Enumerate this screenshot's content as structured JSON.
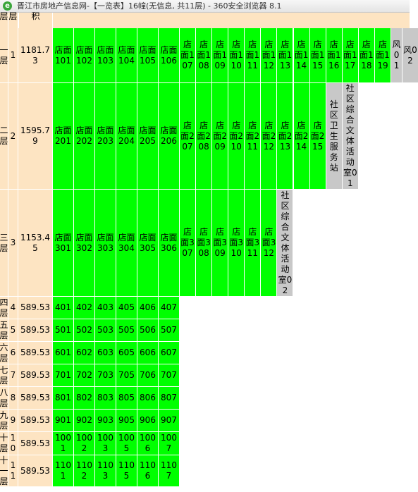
{
  "window_title": "晋江市房地产信息网-【一览表】16幢(无信息, 共11层) - 360安全浏览器 8.1",
  "header": [
    "层",
    "层",
    "积"
  ],
  "rows": [
    {
      "floor": "一层",
      "num": 1,
      "area": 1181.73,
      "units": [
        {
          "label": "店面101",
          "color": "#00ff00"
        },
        {
          "label": "店面102",
          "color": "#00ff00"
        },
        {
          "label": "店面103",
          "color": "#00ff00"
        },
        {
          "label": "店面104",
          "color": "#00ff00"
        },
        {
          "label": "店面105",
          "color": "#00ff00"
        },
        {
          "label": "店面106",
          "color": "#00ff00"
        },
        {
          "label": "店面107",
          "color": "#00ff00"
        },
        {
          "label": "店面108",
          "color": "#00ff00"
        },
        {
          "label": "店面109",
          "color": "#00ff00"
        },
        {
          "label": "店面110",
          "color": "#00ff00"
        },
        {
          "label": "店面111",
          "color": "#00ff00"
        },
        {
          "label": "店面112",
          "color": "#00ff00"
        },
        {
          "label": "店面113",
          "color": "#00ff00"
        },
        {
          "label": "店面114",
          "color": "#00ff00"
        },
        {
          "label": "店面115",
          "color": "#00ff00"
        },
        {
          "label": "店面116",
          "color": "#00ff00"
        },
        {
          "label": "店面117",
          "color": "#00ff00"
        },
        {
          "label": "店面118",
          "color": "#00ff00"
        },
        {
          "label": "店面119",
          "color": "#00ff00"
        },
        {
          "label": "风01",
          "color": "#c8c8c8"
        },
        {
          "label": "风02",
          "color": "#c8c8c8"
        }
      ]
    },
    {
      "floor": "二层",
      "num": 2,
      "area": 1595.79,
      "units": [
        {
          "label": "店面201",
          "color": "#00ff00"
        },
        {
          "label": "店面202",
          "color": "#00ff00"
        },
        {
          "label": "店面203",
          "color": "#00ff00"
        },
        {
          "label": "店面204",
          "color": "#00ff00"
        },
        {
          "label": "店面205",
          "color": "#00ff00"
        },
        {
          "label": "店面206",
          "color": "#00ff00"
        },
        {
          "label": "店面207",
          "color": "#00ff00"
        },
        {
          "label": "店面208",
          "color": "#00ff00"
        },
        {
          "label": "店面209",
          "color": "#00ff00"
        },
        {
          "label": "店面210",
          "color": "#00ff00"
        },
        {
          "label": "店面211",
          "color": "#00ff00"
        },
        {
          "label": "店面212",
          "color": "#00ff00"
        },
        {
          "label": "店面213",
          "color": "#00ff00"
        },
        {
          "label": "店面214",
          "color": "#00ff00"
        },
        {
          "label": "店面215",
          "color": "#00ff00"
        },
        {
          "label": "社区卫生服务站",
          "color": "#c8c8c8"
        },
        {
          "label": "社区综合文体活动室01",
          "color": "#c8c8c8"
        }
      ]
    },
    {
      "floor": "三层",
      "num": 3,
      "area": 1153.45,
      "units": [
        {
          "label": "店面301",
          "color": "#00ff00"
        },
        {
          "label": "店面302",
          "color": "#00ff00"
        },
        {
          "label": "店面303",
          "color": "#00ff00"
        },
        {
          "label": "店面304",
          "color": "#00ff00"
        },
        {
          "label": "店面305",
          "color": "#00ff00"
        },
        {
          "label": "店面306",
          "color": "#00ff00"
        },
        {
          "label": "店面307",
          "color": "#00ff00"
        },
        {
          "label": "店面308",
          "color": "#00ff00"
        },
        {
          "label": "店面309",
          "color": "#00ff00"
        },
        {
          "label": "店面310",
          "color": "#00ff00"
        },
        {
          "label": "店面311",
          "color": "#00ff00"
        },
        {
          "label": "店面312",
          "color": "#00ff00"
        },
        {
          "label": "社区综合文体活动室02",
          "color": "#c8c8c8"
        }
      ]
    },
    {
      "floor": "四层",
      "num": 4,
      "area": 589.53,
      "units": [
        {
          "label": "401",
          "color": "#00ff00"
        },
        {
          "label": "402",
          "color": "#00ff00"
        },
        {
          "label": "403",
          "color": "#00ff00"
        },
        {
          "label": "405",
          "color": "#00ff00"
        },
        {
          "label": "406",
          "color": "#00ff00"
        },
        {
          "label": "407",
          "color": "#00ff00"
        }
      ]
    },
    {
      "floor": "五层",
      "num": 5,
      "area": 589.53,
      "units": [
        {
          "label": "501",
          "color": "#00ff00"
        },
        {
          "label": "502",
          "color": "#00ff00"
        },
        {
          "label": "503",
          "color": "#00ff00"
        },
        {
          "label": "505",
          "color": "#00ff00"
        },
        {
          "label": "506",
          "color": "#00ff00"
        },
        {
          "label": "507",
          "color": "#00ff00"
        }
      ]
    },
    {
      "floor": "六层",
      "num": 6,
      "area": 589.53,
      "units": [
        {
          "label": "601",
          "color": "#00ff00"
        },
        {
          "label": "602",
          "color": "#00ff00"
        },
        {
          "label": "603",
          "color": "#00ff00"
        },
        {
          "label": "605",
          "color": "#00ff00"
        },
        {
          "label": "606",
          "color": "#00ff00"
        },
        {
          "label": "607",
          "color": "#00ff00"
        }
      ]
    },
    {
      "floor": "七层",
      "num": 7,
      "area": 589.53,
      "units": [
        {
          "label": "701",
          "color": "#00ff00"
        },
        {
          "label": "702",
          "color": "#00ff00"
        },
        {
          "label": "703",
          "color": "#00ff00"
        },
        {
          "label": "705",
          "color": "#00ff00"
        },
        {
          "label": "706",
          "color": "#00ff00"
        },
        {
          "label": "707",
          "color": "#00ff00"
        }
      ]
    },
    {
      "floor": "八层",
      "num": 8,
      "area": 589.53,
      "units": [
        {
          "label": "801",
          "color": "#00ff00"
        },
        {
          "label": "802",
          "color": "#00ff00"
        },
        {
          "label": "803",
          "color": "#00ff00"
        },
        {
          "label": "805",
          "color": "#00ff00"
        },
        {
          "label": "806",
          "color": "#00ff00"
        },
        {
          "label": "807",
          "color": "#00ff00"
        }
      ]
    },
    {
      "floor": "九层",
      "num": 9,
      "area": 589.53,
      "units": [
        {
          "label": "901",
          "color": "#00ff00"
        },
        {
          "label": "902",
          "color": "#00ff00"
        },
        {
          "label": "903",
          "color": "#00ff00"
        },
        {
          "label": "905",
          "color": "#00ff00"
        },
        {
          "label": "906",
          "color": "#00ff00"
        },
        {
          "label": "907",
          "color": "#00ff00"
        }
      ]
    },
    {
      "floor": "十层",
      "num": 10,
      "area": 589.53,
      "units": [
        {
          "label": "1001",
          "color": "#00ff00"
        },
        {
          "label": "1002",
          "color": "#00ff00"
        },
        {
          "label": "1003",
          "color": "#00ff00"
        },
        {
          "label": "1005",
          "color": "#00ff00"
        },
        {
          "label": "1006",
          "color": "#00ff00"
        },
        {
          "label": "1007",
          "color": "#00ff00"
        }
      ]
    },
    {
      "floor": "十一层",
      "num": 11,
      "area": 589.53,
      "units": [
        {
          "label": "1101",
          "color": "#00ff00"
        },
        {
          "label": "1102",
          "color": "#00ff00"
        },
        {
          "label": "1103",
          "color": "#00ff00"
        },
        {
          "label": "1105",
          "color": "#00ff00"
        },
        {
          "label": "1106",
          "color": "#00ff00"
        },
        {
          "label": "1107",
          "color": "#00ff00"
        }
      ]
    }
  ]
}
